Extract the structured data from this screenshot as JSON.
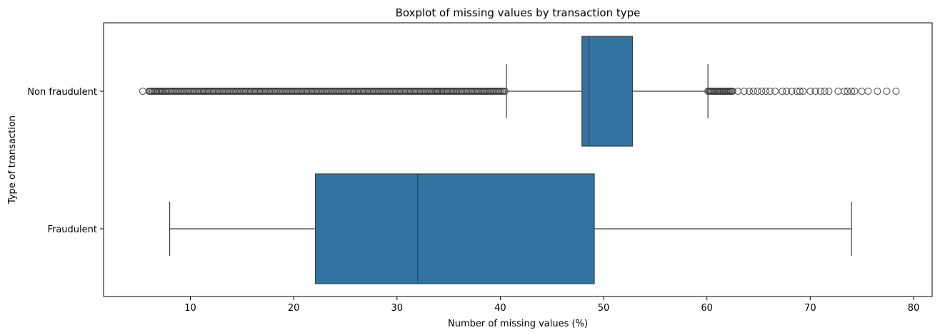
{
  "chart_data": {
    "type": "boxplot",
    "orientation": "horizontal",
    "title": "Boxplot of missing values by transaction type",
    "xlabel": "Number of missing values (%)",
    "ylabel": "Type of transaction",
    "xlim": [
      1.6,
      81.8
    ],
    "x_ticks": [
      10,
      20,
      30,
      40,
      50,
      60,
      70,
      80
    ],
    "grid": false,
    "box_color": "#3274a1",
    "line_color": "#3f3f3f",
    "series": [
      {
        "category": "Non fraudulent",
        "whisker_low": 40.6,
        "q1": 47.9,
        "median": 48.6,
        "q3": 52.8,
        "whisker_high": 60.1,
        "outliers_low_range": [
          6.0,
          40.5
        ],
        "outliers_low_sparse": [
          5.4,
          6.1,
          6.6,
          7.0,
          7.3,
          11.4,
          16.8,
          33.9,
          34.9,
          35.5,
          37.8,
          38.5,
          39.1
        ],
        "outliers_high_range": [
          60.1,
          62.6
        ],
        "outliers_high_sparse": [
          63.0,
          63.6,
          64.1,
          64.5,
          64.9,
          65.3,
          65.7,
          66.1,
          66.6,
          67.3,
          67.7,
          68.2,
          68.7,
          69.0,
          69.3,
          70.0,
          70.5,
          71.0,
          71.4,
          71.8,
          72.7,
          73.3,
          73.6,
          74.0,
          74.3,
          75.0,
          75.6,
          76.5,
          77.4,
          78.3
        ]
      },
      {
        "category": "Fraudulent",
        "whisker_low": 8.0,
        "q1": 22.1,
        "median": 32.0,
        "q3": 49.1,
        "whisker_high": 74.0,
        "outliers_low_range": null,
        "outliers_low_sparse": [],
        "outliers_high_range": null,
        "outliers_high_sparse": []
      }
    ]
  }
}
